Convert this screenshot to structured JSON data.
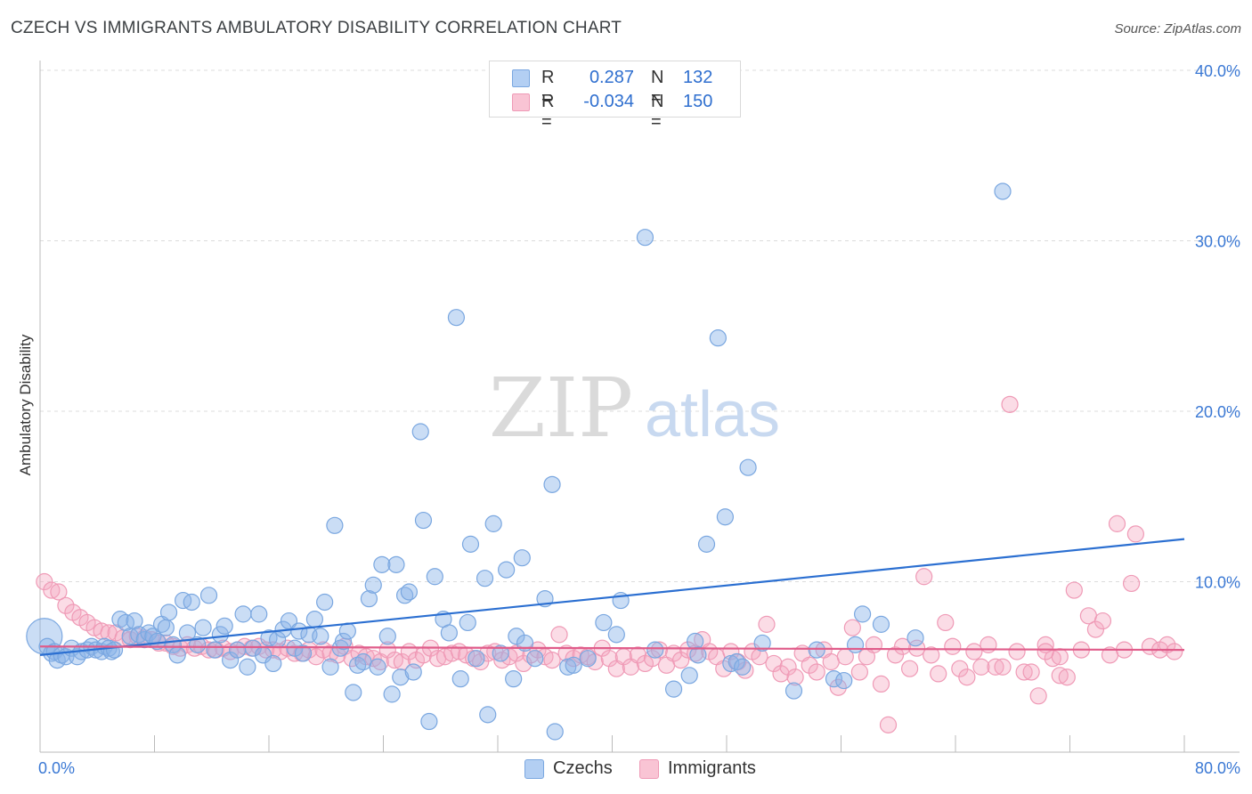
{
  "title": "CZECH VS IMMIGRANTS AMBULATORY DISABILITY CORRELATION CHART",
  "source": "Source: ZipAtlas.com",
  "watermark": {
    "zip": "ZIP",
    "atlas": "atlas"
  },
  "legend": {
    "rows": [
      {
        "r_label": "R =",
        "r_value": "0.287",
        "n_label": "N =",
        "n_value": "132"
      },
      {
        "r_label": "R =",
        "r_value": "-0.034",
        "n_label": "N =",
        "n_value": "150"
      }
    ],
    "bottom": [
      "Czechs",
      "Immigrants"
    ]
  },
  "chart_data": {
    "type": "scatter",
    "title": "CZECH VS IMMIGRANTS AMBULATORY DISABILITY CORRELATION CHART",
    "xlabel": "",
    "ylabel": "Ambulatory Disability",
    "xlim": [
      0,
      80
    ],
    "ylim": [
      0,
      40
    ],
    "x_tick_labels": [
      "0.0%",
      "80.0%"
    ],
    "y_tick_labels": [
      "10.0%",
      "20.0%",
      "30.0%",
      "40.0%"
    ],
    "y_ticks": [
      10,
      20,
      30,
      40
    ],
    "grid": true,
    "legend_position": "top-center",
    "series": [
      {
        "name": "Czechs",
        "color": "#8ab4e8",
        "line_color": "#2b6fd1",
        "r": 0.287,
        "n": 132,
        "trend": {
          "x": [
            0,
            80
          ],
          "y": [
            5.7,
            12.5
          ]
        },
        "points": [
          [
            0.3,
            6.8
          ],
          [
            0.5,
            6.2
          ],
          [
            0.8,
            5.8
          ],
          [
            1.0,
            5.9
          ],
          [
            1.2,
            5.4
          ],
          [
            1.5,
            5.7
          ],
          [
            1.8,
            5.6
          ],
          [
            2.2,
            6.1
          ],
          [
            2.6,
            5.6
          ],
          [
            2.9,
            5.9
          ],
          [
            3.3,
            6.0
          ],
          [
            3.6,
            6.2
          ],
          [
            3.9,
            6.0
          ],
          [
            4.3,
            5.9
          ],
          [
            4.5,
            6.2
          ],
          [
            4.8,
            6.1
          ],
          [
            5.0,
            5.9
          ],
          [
            5.2,
            6.0
          ],
          [
            5.6,
            7.8
          ],
          [
            6.0,
            7.6
          ],
          [
            6.3,
            6.8
          ],
          [
            6.6,
            7.7
          ],
          [
            6.9,
            6.9
          ],
          [
            7.3,
            6.6
          ],
          [
            7.6,
            7.0
          ],
          [
            7.9,
            6.8
          ],
          [
            8.2,
            6.5
          ],
          [
            8.5,
            7.5
          ],
          [
            8.8,
            7.3
          ],
          [
            9.0,
            8.2
          ],
          [
            9.3,
            6.3
          ],
          [
            9.6,
            5.7
          ],
          [
            10.0,
            8.9
          ],
          [
            10.3,
            7.0
          ],
          [
            10.6,
            8.8
          ],
          [
            11.0,
            6.3
          ],
          [
            11.4,
            7.3
          ],
          [
            11.8,
            9.2
          ],
          [
            12.2,
            6.0
          ],
          [
            12.6,
            6.9
          ],
          [
            12.9,
            7.4
          ],
          [
            13.3,
            5.4
          ],
          [
            13.8,
            6.0
          ],
          [
            14.2,
            8.1
          ],
          [
            14.5,
            5.0
          ],
          [
            14.9,
            6.1
          ],
          [
            15.3,
            8.1
          ],
          [
            15.6,
            5.7
          ],
          [
            16.0,
            6.7
          ],
          [
            16.3,
            5.2
          ],
          [
            16.6,
            6.6
          ],
          [
            17.0,
            7.2
          ],
          [
            17.4,
            7.7
          ],
          [
            17.8,
            6.1
          ],
          [
            18.1,
            7.1
          ],
          [
            18.4,
            5.8
          ],
          [
            18.8,
            6.9
          ],
          [
            19.2,
            7.8
          ],
          [
            19.6,
            6.8
          ],
          [
            19.9,
            8.8
          ],
          [
            20.3,
            5.0
          ],
          [
            20.6,
            13.3
          ],
          [
            21.0,
            6.1
          ],
          [
            21.2,
            6.5
          ],
          [
            21.5,
            7.1
          ],
          [
            21.9,
            3.5
          ],
          [
            22.2,
            5.1
          ],
          [
            22.6,
            5.3
          ],
          [
            23.0,
            9.0
          ],
          [
            23.3,
            9.8
          ],
          [
            23.6,
            5.0
          ],
          [
            23.9,
            11.0
          ],
          [
            24.3,
            6.8
          ],
          [
            24.6,
            3.4
          ],
          [
            24.9,
            11.0
          ],
          [
            25.2,
            4.4
          ],
          [
            25.5,
            9.2
          ],
          [
            25.8,
            9.4
          ],
          [
            26.1,
            4.7
          ],
          [
            26.6,
            18.8
          ],
          [
            26.8,
            13.6
          ],
          [
            27.2,
            1.8
          ],
          [
            27.6,
            10.3
          ],
          [
            28.2,
            7.8
          ],
          [
            28.6,
            7.0
          ],
          [
            29.1,
            25.5
          ],
          [
            29.4,
            4.3
          ],
          [
            29.9,
            7.6
          ],
          [
            30.1,
            12.2
          ],
          [
            30.5,
            5.5
          ],
          [
            31.1,
            10.2
          ],
          [
            31.3,
            2.2
          ],
          [
            31.7,
            13.4
          ],
          [
            32.2,
            5.8
          ],
          [
            32.6,
            10.7
          ],
          [
            33.1,
            4.3
          ],
          [
            33.3,
            6.8
          ],
          [
            33.7,
            11.4
          ],
          [
            33.9,
            6.4
          ],
          [
            34.6,
            5.5
          ],
          [
            35.3,
            9.0
          ],
          [
            35.8,
            15.7
          ],
          [
            36.0,
            1.2
          ],
          [
            36.9,
            5.0
          ],
          [
            37.3,
            5.1
          ],
          [
            38.3,
            5.5
          ],
          [
            39.4,
            7.6
          ],
          [
            40.3,
            6.9
          ],
          [
            40.6,
            8.9
          ],
          [
            42.3,
            30.2
          ],
          [
            43.0,
            6.0
          ],
          [
            44.3,
            3.7
          ],
          [
            45.4,
            4.5
          ],
          [
            45.8,
            6.5
          ],
          [
            46.0,
            5.7
          ],
          [
            46.6,
            12.2
          ],
          [
            47.4,
            24.3
          ],
          [
            47.9,
            13.8
          ],
          [
            48.3,
            5.2
          ],
          [
            48.7,
            5.3
          ],
          [
            49.1,
            5.0
          ],
          [
            49.5,
            16.7
          ],
          [
            50.5,
            6.4
          ],
          [
            52.7,
            3.6
          ],
          [
            54.3,
            6.0
          ],
          [
            55.5,
            4.3
          ],
          [
            56.2,
            4.2
          ],
          [
            57.0,
            6.3
          ],
          [
            57.5,
            8.1
          ],
          [
            58.8,
            7.5
          ],
          [
            61.2,
            6.7
          ],
          [
            67.3,
            32.9
          ]
        ]
      },
      {
        "name": "Immigrants",
        "color": "#f4a8c0",
        "line_color": "#e05c8a",
        "r": -0.034,
        "n": 150,
        "trend": {
          "x": [
            0,
            80
          ],
          "y": [
            6.2,
            6.0
          ]
        },
        "points": [
          [
            0.3,
            10.0
          ],
          [
            0.8,
            9.5
          ],
          [
            1.3,
            9.4
          ],
          [
            1.8,
            8.6
          ],
          [
            2.3,
            8.2
          ],
          [
            2.8,
            7.9
          ],
          [
            3.3,
            7.6
          ],
          [
            3.8,
            7.3
          ],
          [
            4.3,
            7.1
          ],
          [
            4.8,
            7.0
          ],
          [
            5.3,
            7.0
          ],
          [
            5.8,
            6.7
          ],
          [
            6.3,
            6.6
          ],
          [
            6.8,
            6.8
          ],
          [
            7.3,
            6.7
          ],
          [
            7.8,
            6.6
          ],
          [
            8.3,
            6.4
          ],
          [
            8.8,
            6.4
          ],
          [
            9.3,
            6.2
          ],
          [
            9.8,
            6.1
          ],
          [
            10.3,
            6.3
          ],
          [
            10.8,
            6.1
          ],
          [
            11.3,
            6.2
          ],
          [
            11.8,
            6.0
          ],
          [
            12.3,
            6.0
          ],
          [
            12.8,
            6.1
          ],
          [
            13.3,
            5.9
          ],
          [
            13.8,
            6.0
          ],
          [
            14.3,
            6.2
          ],
          [
            14.8,
            6.1
          ],
          [
            15.3,
            6.2
          ],
          [
            15.8,
            6.0
          ],
          [
            16.3,
            6.0
          ],
          [
            16.8,
            5.9
          ],
          [
            17.3,
            6.1
          ],
          [
            17.8,
            5.8
          ],
          [
            18.3,
            5.8
          ],
          [
            18.8,
            6.0
          ],
          [
            19.3,
            5.6
          ],
          [
            19.8,
            6.0
          ],
          [
            20.3,
            5.8
          ],
          [
            20.8,
            5.7
          ],
          [
            21.3,
            6.2
          ],
          [
            21.8,
            5.5
          ],
          [
            22.3,
            5.8
          ],
          [
            22.8,
            5.6
          ],
          [
            23.3,
            5.5
          ],
          [
            23.8,
            5.3
          ],
          [
            24.3,
            6.0
          ],
          [
            24.8,
            5.4
          ],
          [
            25.3,
            5.3
          ],
          [
            25.8,
            5.9
          ],
          [
            26.3,
            5.4
          ],
          [
            26.8,
            5.7
          ],
          [
            27.3,
            6.1
          ],
          [
            27.8,
            5.5
          ],
          [
            28.3,
            5.6
          ],
          [
            28.8,
            5.8
          ],
          [
            29.3,
            5.9
          ],
          [
            29.8,
            5.7
          ],
          [
            30.3,
            5.5
          ],
          [
            30.8,
            5.3
          ],
          [
            31.3,
            5.8
          ],
          [
            31.8,
            5.9
          ],
          [
            32.3,
            5.4
          ],
          [
            32.8,
            5.6
          ],
          [
            33.3,
            5.8
          ],
          [
            33.8,
            5.2
          ],
          [
            34.3,
            5.7
          ],
          [
            34.8,
            6.0
          ],
          [
            35.3,
            5.6
          ],
          [
            35.8,
            5.4
          ],
          [
            36.3,
            6.9
          ],
          [
            36.8,
            5.8
          ],
          [
            37.3,
            5.5
          ],
          [
            37.8,
            5.7
          ],
          [
            38.3,
            5.6
          ],
          [
            38.8,
            5.3
          ],
          [
            39.3,
            6.1
          ],
          [
            39.8,
            5.5
          ],
          [
            40.3,
            4.9
          ],
          [
            40.8,
            5.6
          ],
          [
            41.3,
            5.0
          ],
          [
            41.8,
            5.7
          ],
          [
            42.3,
            5.2
          ],
          [
            42.8,
            5.5
          ],
          [
            43.3,
            6.0
          ],
          [
            43.8,
            5.1
          ],
          [
            44.3,
            5.8
          ],
          [
            44.8,
            5.4
          ],
          [
            45.3,
            6.0
          ],
          [
            45.8,
            5.8
          ],
          [
            46.3,
            6.6
          ],
          [
            46.8,
            5.9
          ],
          [
            47.3,
            5.6
          ],
          [
            47.8,
            4.9
          ],
          [
            48.3,
            5.9
          ],
          [
            48.8,
            5.3
          ],
          [
            49.3,
            4.8
          ],
          [
            49.8,
            5.9
          ],
          [
            50.3,
            5.6
          ],
          [
            50.8,
            7.5
          ],
          [
            51.3,
            5.2
          ],
          [
            51.8,
            4.6
          ],
          [
            52.3,
            5.0
          ],
          [
            52.8,
            4.4
          ],
          [
            53.3,
            5.8
          ],
          [
            53.8,
            5.1
          ],
          [
            54.3,
            4.7
          ],
          [
            54.8,
            6.0
          ],
          [
            55.3,
            5.3
          ],
          [
            55.8,
            3.8
          ],
          [
            56.3,
            5.6
          ],
          [
            56.8,
            7.3
          ],
          [
            57.3,
            4.7
          ],
          [
            57.8,
            5.6
          ],
          [
            58.3,
            6.3
          ],
          [
            58.8,
            4.0
          ],
          [
            59.3,
            1.6
          ],
          [
            59.8,
            5.7
          ],
          [
            60.3,
            6.2
          ],
          [
            60.8,
            4.9
          ],
          [
            61.3,
            6.1
          ],
          [
            61.8,
            10.3
          ],
          [
            62.3,
            5.7
          ],
          [
            62.8,
            4.6
          ],
          [
            63.3,
            7.6
          ],
          [
            63.8,
            6.2
          ],
          [
            64.3,
            4.9
          ],
          [
            64.8,
            4.4
          ],
          [
            65.3,
            5.9
          ],
          [
            65.8,
            5.0
          ],
          [
            66.3,
            6.3
          ],
          [
            66.8,
            5.0
          ],
          [
            67.3,
            5.0
          ],
          [
            67.8,
            20.4
          ],
          [
            68.3,
            5.9
          ],
          [
            68.8,
            4.7
          ],
          [
            69.3,
            4.7
          ],
          [
            69.8,
            3.3
          ],
          [
            70.3,
            6.3
          ],
          [
            70.8,
            5.5
          ],
          [
            71.3,
            4.5
          ],
          [
            71.8,
            4.4
          ],
          [
            72.3,
            9.5
          ],
          [
            72.8,
            6.0
          ],
          [
            73.3,
            8.0
          ],
          [
            73.8,
            7.2
          ],
          [
            74.3,
            7.7
          ],
          [
            75.3,
            13.4
          ],
          [
            76.3,
            9.9
          ],
          [
            76.6,
            12.8
          ],
          [
            77.6,
            6.2
          ],
          [
            78.3,
            6.0
          ],
          [
            78.8,
            6.3
          ],
          [
            79.3,
            5.9
          ],
          [
            75.8,
            6.0
          ],
          [
            74.8,
            5.7
          ],
          [
            71.3,
            5.6
          ],
          [
            70.3,
            5.9
          ]
        ]
      }
    ]
  }
}
